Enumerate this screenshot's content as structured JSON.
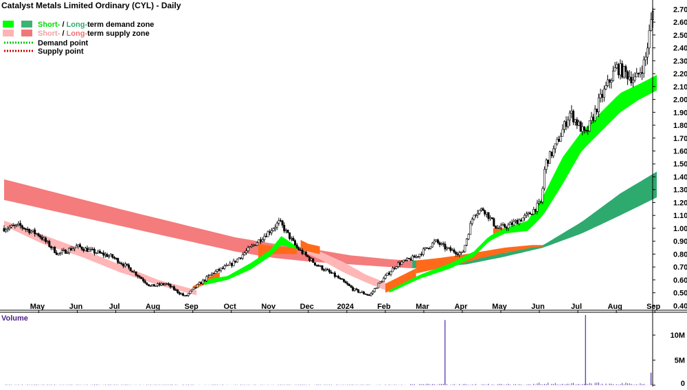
{
  "chart_data": {
    "type": "candlestick",
    "title": "Catalyst Metals Limited Ordinary (CYL) - Daily",
    "legend": {
      "items": [
        {
          "prefix": "Short-",
          "sep": " / ",
          "mid": "Long-",
          "suffix": "term demand zone",
          "colors": [
            "#00ff00",
            "#3cb371"
          ]
        },
        {
          "prefix": "Short-",
          "sep": " / ",
          "mid": "Long-",
          "suffix": "term supply zone",
          "colors": [
            "#ffb3b3",
            "#f07878"
          ]
        },
        {
          "label": "Demand point",
          "color": "#00cc00"
        },
        {
          "label": "Supply point",
          "color": "#cc0000"
        }
      ],
      "placement": "top-left"
    },
    "colors": {
      "demand_short": "#00ff00",
      "demand_long": "#2eaa6e",
      "supply_short": "#ffb6b6",
      "supply_long": "#f47c7c",
      "transition": "#ff6a1a",
      "volume": "#6a3fb5",
      "text_green": "#00cc00",
      "text_pink": "#f08080"
    },
    "y_axis": {
      "ticks": [
        "2.70",
        "2.60",
        "2.50",
        "2.40",
        "2.30",
        "2.20",
        "2.10",
        "2.00",
        "1.90",
        "1.80",
        "1.70",
        "1.60",
        "1.50",
        "1.40",
        "1.30",
        "1.20",
        "1.10",
        "1.00",
        "0.90",
        "0.80",
        "0.70",
        "0.60",
        "0.50",
        "0.40"
      ],
      "range": [
        0.37,
        2.75
      ],
      "grid": false
    },
    "x_axis": {
      "ticks": [
        "May",
        "Jun",
        "Jul",
        "Aug",
        "Sep",
        "Oct",
        "Nov",
        "Dec",
        "2024",
        "Feb",
        "Mar",
        "Apr",
        "May",
        "Jun",
        "Jul",
        "Aug",
        "Sep"
      ],
      "range_months": [
        0,
        16.95
      ]
    },
    "price_anchors": {
      "t": [
        0,
        0.4,
        0.9,
        1.4,
        1.9,
        2.3,
        2.8,
        3.3,
        3.8,
        4.2,
        4.7,
        5.0,
        5.4,
        5.9,
        6.4,
        6.9,
        7.15,
        7.6,
        8.1,
        8.6,
        9.1,
        9.5,
        9.7,
        10.2,
        10.7,
        11.2,
        11.5,
        11.9,
        12.2,
        12.45,
        12.8,
        13.1,
        13.6,
        13.95,
        14.05,
        14.3,
        14.7,
        15.1,
        15.45,
        15.9,
        16.4,
        16.65,
        16.75,
        16.85
      ],
      "close": [
        1.0,
        1.02,
        0.95,
        0.8,
        0.86,
        0.82,
        0.78,
        0.68,
        0.55,
        0.57,
        0.47,
        0.55,
        0.65,
        0.72,
        0.85,
        0.98,
        1.05,
        0.85,
        0.72,
        0.63,
        0.52,
        0.48,
        0.56,
        0.72,
        0.78,
        0.9,
        0.84,
        0.8,
        1.12,
        1.15,
        1.0,
        1.02,
        1.1,
        1.2,
        1.5,
        1.62,
        1.9,
        1.72,
        1.98,
        2.25,
        2.15,
        2.3,
        2.5,
        2.68
      ]
    },
    "zones": {
      "long_supply": {
        "t": [
          0,
          3,
          6,
          7,
          8,
          9,
          10,
          10.6
        ],
        "upper": [
          1.38,
          1.15,
          0.93,
          0.88,
          0.84,
          0.79,
          0.76,
          0.75
        ],
        "lower": [
          1.22,
          1.02,
          0.82,
          0.77,
          0.74,
          0.72,
          0.7,
          0.69
        ]
      },
      "long_demand": {
        "t": [
          10.6,
          12,
          13,
          14,
          15,
          16,
          16.95
        ],
        "upper": [
          0.75,
          0.77,
          0.81,
          0.87,
          1.05,
          1.27,
          1.44
        ],
        "lower": [
          0.69,
          0.72,
          0.78,
          0.85,
          0.96,
          1.1,
          1.24
        ]
      },
      "short_supply_a": {
        "t": [
          0,
          1,
          2,
          3,
          4,
          5.0
        ],
        "upper": [
          1.06,
          0.95,
          0.84,
          0.72,
          0.6,
          0.52
        ],
        "lower": [
          1.02,
          0.88,
          0.78,
          0.66,
          0.56,
          0.48
        ]
      },
      "short_supply_b": {
        "t": [
          7.6,
          8.2,
          8.8,
          9.4,
          9.9
        ],
        "upper": [
          0.86,
          0.82,
          0.74,
          0.64,
          0.58
        ],
        "lower": [
          0.84,
          0.76,
          0.66,
          0.58,
          0.52
        ]
      },
      "short_demand_a": {
        "t": [
          5.2,
          5.8,
          6.4,
          6.9,
          7.2,
          7.6
        ],
        "upper": [
          0.6,
          0.63,
          0.73,
          0.83,
          0.94,
          0.86
        ],
        "lower": [
          0.56,
          0.6,
          0.68,
          0.78,
          0.87,
          0.84
        ]
      },
      "short_demand_b": {
        "t": [
          10.0,
          10.8,
          11.6,
          12.2,
          12.6,
          13.0,
          13.6,
          14.0,
          14.5,
          15.0,
          15.5,
          16.0,
          16.5,
          16.95
        ],
        "upper": [
          0.52,
          0.64,
          0.73,
          0.82,
          0.94,
          1.0,
          1.06,
          1.25,
          1.55,
          1.75,
          1.9,
          2.05,
          2.12,
          2.19
        ],
        "lower": [
          0.5,
          0.61,
          0.69,
          0.78,
          0.9,
          0.96,
          0.98,
          1.1,
          1.34,
          1.6,
          1.75,
          1.9,
          2.0,
          2.07
        ]
      },
      "transitions": [
        {
          "t": [
            4.9,
            5.3,
            5.6
          ],
          "upper": [
            0.55,
            0.62,
            0.66
          ],
          "lower": [
            0.52,
            0.58,
            0.62
          ]
        },
        {
          "t": [
            6.6,
            7.0,
            7.6
          ],
          "upper": [
            0.88,
            0.86,
            0.85
          ],
          "lower": [
            0.75,
            0.8,
            0.8
          ]
        },
        {
          "t": [
            7.7,
            7.9,
            8.2
          ],
          "upper": [
            0.91,
            0.88,
            0.86
          ],
          "lower": [
            0.84,
            0.82,
            0.8
          ]
        },
        {
          "t": [
            9.9,
            10.3,
            10.7
          ],
          "upper": [
            0.57,
            0.63,
            0.69
          ],
          "lower": [
            0.5,
            0.55,
            0.6
          ]
        },
        {
          "t": [
            10.7,
            11.3,
            11.8,
            12.4,
            13.0,
            13.7,
            14.0
          ],
          "upper": [
            0.75,
            0.77,
            0.79,
            0.82,
            0.85,
            0.87,
            0.87
          ],
          "lower": [
            0.65,
            0.69,
            0.72,
            0.77,
            0.81,
            0.85,
            0.86
          ]
        },
        {
          "t": [
            12.7,
            12.9,
            13.1
          ],
          "upper": [
            1.0,
            1.0,
            1.0
          ],
          "lower": [
            0.96,
            0.95,
            0.97
          ]
        }
      ]
    },
    "volume": {
      "label": "Volume",
      "ticks": [
        "10M",
        "5M",
        "0"
      ],
      "range": [
        0,
        14
      ],
      "spikes": [
        {
          "t": 11.45,
          "value": 13.0
        },
        {
          "t": 15.1,
          "value": 14.0
        },
        {
          "t": 16.8,
          "value": 2.5
        }
      ]
    }
  }
}
